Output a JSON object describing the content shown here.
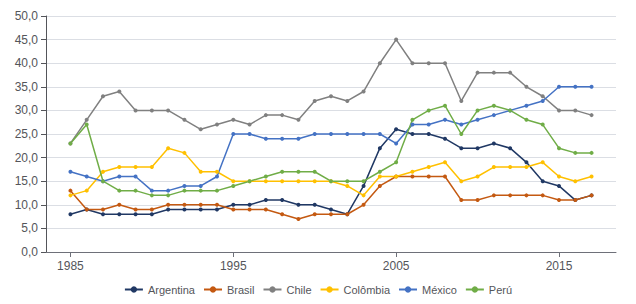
{
  "chart_data": {
    "type": "line",
    "x": [
      1985,
      1986,
      1987,
      1988,
      1989,
      1990,
      1991,
      1992,
      1993,
      1994,
      1995,
      1996,
      1997,
      1998,
      1999,
      2000,
      2001,
      2002,
      2003,
      2004,
      2005,
      2006,
      2007,
      2008,
      2009,
      2010,
      2011,
      2012,
      2013,
      2014,
      2015,
      2016,
      2017
    ],
    "series": [
      {
        "name": "Argentina",
        "color": "#203864",
        "values": [
          8,
          9,
          8,
          8,
          8,
          8,
          9,
          9,
          9,
          9,
          10,
          10,
          11,
          11,
          10,
          10,
          9,
          8,
          14,
          22,
          26,
          25,
          25,
          24,
          22,
          22,
          23,
          22,
          19,
          15,
          14,
          11,
          12
        ]
      },
      {
        "name": "Brasil",
        "color": "#c45911",
        "values": [
          13,
          9,
          9,
          10,
          9,
          9,
          10,
          10,
          10,
          10,
          9,
          9,
          9,
          8,
          7,
          8,
          8,
          8,
          10,
          14,
          16,
          16,
          16,
          16,
          11,
          11,
          12,
          12,
          12,
          12,
          11,
          11,
          12
        ]
      },
      {
        "name": "Chile",
        "color": "#808080",
        "values": [
          23,
          28,
          33,
          34,
          30,
          30,
          30,
          28,
          26,
          27,
          28,
          27,
          29,
          29,
          28,
          32,
          33,
          32,
          34,
          40,
          45,
          40,
          40,
          40,
          32,
          38,
          38,
          38,
          35,
          33,
          30,
          30,
          29
        ]
      },
      {
        "name": "Colômbia",
        "color": "#ffc000",
        "values": [
          12,
          13,
          17,
          18,
          18,
          18,
          22,
          21,
          17,
          17,
          15,
          15,
          15,
          15,
          15,
          15,
          15,
          14,
          12,
          16,
          16,
          17,
          18,
          19,
          15,
          16,
          18,
          18,
          18,
          19,
          16,
          15,
          16
        ]
      },
      {
        "name": "México",
        "color": "#4472c4",
        "values": [
          17,
          16,
          15,
          16,
          16,
          13,
          13,
          14,
          14,
          16,
          25,
          25,
          24,
          24,
          24,
          25,
          25,
          25,
          25,
          25,
          23,
          27,
          27,
          28,
          27,
          28,
          29,
          30,
          31,
          32,
          35,
          35,
          35
        ]
      },
      {
        "name": "Perú",
        "color": "#70ad47",
        "values": [
          23,
          27,
          15,
          13,
          13,
          12,
          12,
          13,
          13,
          13,
          14,
          15,
          16,
          17,
          17,
          17,
          15,
          15,
          15,
          17,
          19,
          28,
          30,
          31,
          25,
          30,
          31,
          30,
          28,
          27,
          22,
          21,
          21
        ]
      }
    ],
    "xlim": [
      1983.5,
      2018.5
    ],
    "xticks": [
      1985,
      1995,
      2005,
      2015
    ],
    "ylim": [
      0,
      50
    ],
    "yticks": [
      {
        "value": 0,
        "label": "0,0"
      },
      {
        "value": 5,
        "label": "5,0"
      },
      {
        "value": 10,
        "label": "10,0"
      },
      {
        "value": 15,
        "label": "15,0"
      },
      {
        "value": 20,
        "label": "20,0"
      },
      {
        "value": 25,
        "label": "25,0"
      },
      {
        "value": 30,
        "label": "30,0"
      },
      {
        "value": 35,
        "label": "35,0"
      },
      {
        "value": 40,
        "label": "40,0"
      },
      {
        "value": 45,
        "label": "45,0"
      },
      {
        "value": 50,
        "label": "50,0"
      }
    ],
    "grid": "y",
    "legend": "bottom",
    "marker": "circle"
  }
}
